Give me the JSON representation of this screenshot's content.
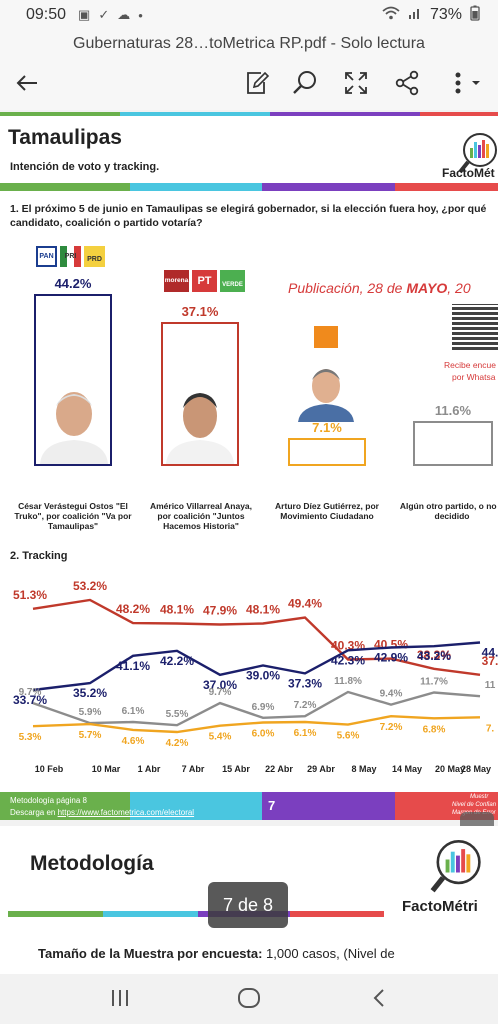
{
  "status_bar": {
    "time": "09:50",
    "battery": "73%"
  },
  "title_bar": {
    "title": "Gubernaturas 28…toMetrica RP.pdf - Solo lectura"
  },
  "page7": {
    "state": "Tamaulipas",
    "subtitle": "Intención de voto y tracking.",
    "brand": "FactoMét",
    "question": "1. El próximo 5 de junio en Tamaulipas se elegirá gobernador, si la elección fuera hoy, ¿por qué candidato, coalición o partido votaría?",
    "publication_prefix": "Publicación, 28 de ",
    "publication_month": "MAYO",
    "publication_suffix": ", 20",
    "qr_caption_line1": "Recibe encue",
    "qr_caption_line2": "por Whatsa",
    "party_logos": {
      "pan": "PAN",
      "pri": "PRI",
      "prd": "PRD",
      "morena": "morena",
      "pt": "PT",
      "verde": "VERDE"
    },
    "tracking_title": "2. Tracking",
    "footer_line1_prefix": "Metodología página 8",
    "footer_line2_prefix": "Descarga en ",
    "footer_link": "https://www.factometrica.com/electoral",
    "page_number": "7",
    "footer_right_1": "Muestr",
    "footer_right_2": "Nivel de Confian",
    "footer_right_3": "Margen de Error"
  },
  "page8": {
    "title": "Metodología",
    "brand": "FactoMétri",
    "body_bold": "Tamaño de la Muestra por encuesta:",
    "body_rest": " 1,000 casos, (Nivel de"
  },
  "page_indicator": "7 de 8",
  "chart_data": [
    {
      "type": "bar",
      "title": "",
      "categories": [
        "César Verástegui Ostos \"El Truko\", por coalición \"Va por Tamaulipas\"",
        "Américo Villarreal Anaya, por coalición \"Juntos Hacemos Historia\"",
        "Arturo Díez Gutiérrez, por Movimiento Ciudadano",
        "Algún otro partido, o no h decidido"
      ],
      "values": [
        44.2,
        37.1,
        7.1,
        11.6
      ],
      "value_labels": [
        "44.2%",
        "37.1%",
        "7.1%",
        "11.6%"
      ],
      "colors": [
        "#1b1f6b",
        "#c0392b",
        "#f0a520",
        "#8c8c8c"
      ]
    },
    {
      "type": "line",
      "title": "2. Tracking",
      "categories": [
        "10 Feb",
        "10 Mar",
        "1 Abr",
        "7 Abr",
        "15 Abr",
        "22 Abr",
        "29 Abr",
        "8 May",
        "14 May",
        "20 May",
        "28 May"
      ],
      "series": [
        {
          "color": "#c0392b",
          "values": [
            51.3,
            53.2,
            48.2,
            48.1,
            47.9,
            48.1,
            49.4,
            40.3,
            40.5,
            38.3,
            37
          ],
          "labels": [
            "51.3%",
            "53.2%",
            "48.2%",
            "48.1%",
            "47.9%",
            "48.1%",
            "49.4%",
            "40.3%",
            "40.5%",
            "38.3%",
            "37."
          ]
        },
        {
          "color": "#1b1f6b",
          "values": [
            33.7,
            35.2,
            41.1,
            42.2,
            37.0,
            39.0,
            37.3,
            42.3,
            42.9,
            43.2,
            44
          ],
          "labels": [
            "33.7%",
            "35.2%",
            "41.1%",
            "42.2%",
            "37.0%",
            "39.0%",
            "37.3%",
            "42.3%",
            "42.9%",
            "43.2%",
            "44."
          ]
        },
        {
          "color": "#8c8c8c",
          "values": [
            9.7,
            5.9,
            6.1,
            5.5,
            9.7,
            6.9,
            7.2,
            11.8,
            9.4,
            11.7,
            11
          ],
          "labels": [
            "9.7%",
            "5.9%",
            "6.1%",
            "5.5%",
            "9.7%",
            "6.9%",
            "7.2%",
            "11.8%",
            "9.4%",
            "11.7%",
            "11"
          ]
        },
        {
          "color": "#f0a520",
          "values": [
            5.3,
            5.7,
            4.6,
            4.2,
            5.4,
            6.0,
            6.1,
            5.6,
            7.2,
            6.8,
            7
          ],
          "labels": [
            "5.3%",
            "5.7%",
            "4.6%",
            "4.2%",
            "5.4%",
            "6.0%",
            "6.1%",
            "5.6%",
            "7.2%",
            "6.8%",
            "7."
          ]
        }
      ]
    }
  ]
}
